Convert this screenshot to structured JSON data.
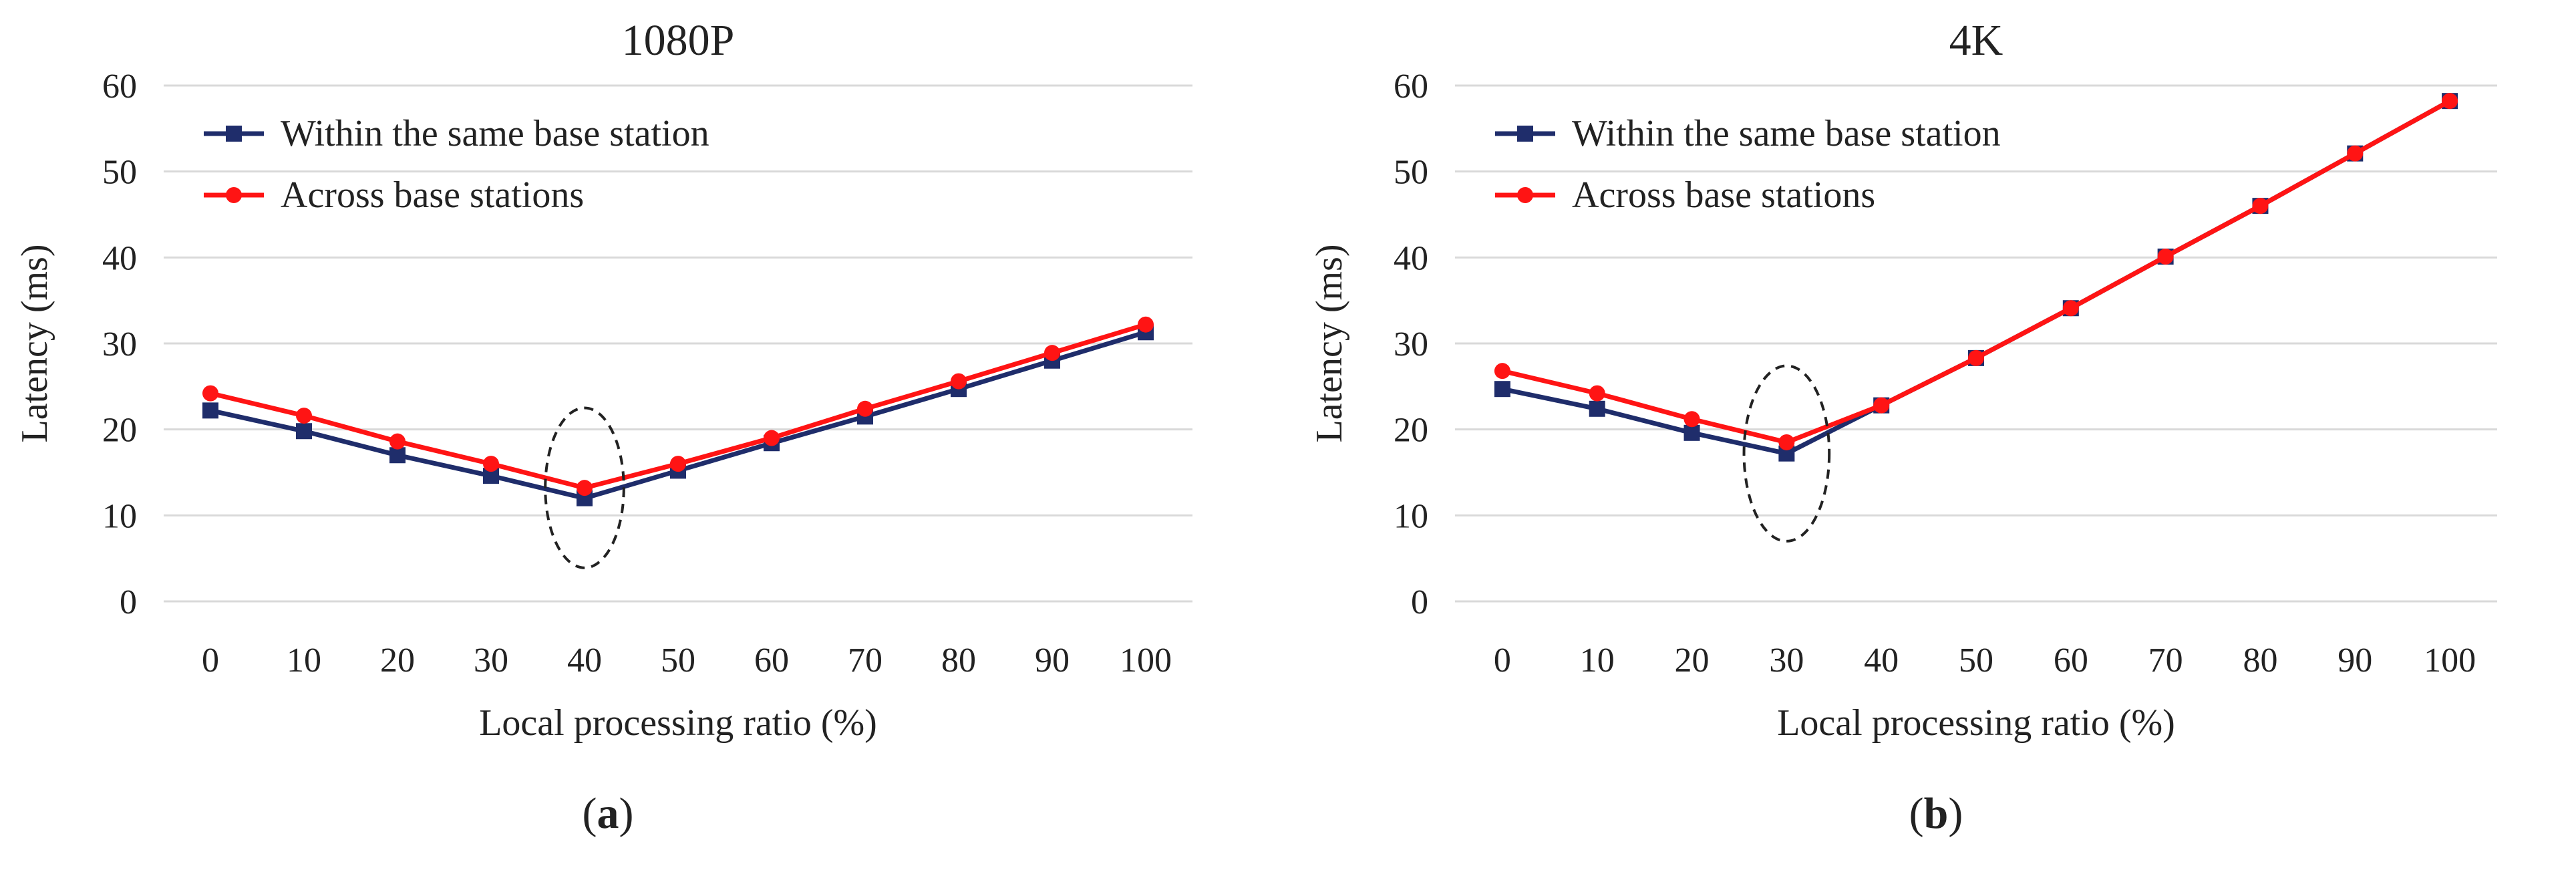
{
  "chart_data": [
    {
      "type": "line",
      "title": "1080P",
      "xlabel": "Local processing ratio (%)",
      "ylabel": "Latency (ms)",
      "x": [
        0,
        10,
        20,
        30,
        40,
        50,
        60,
        70,
        80,
        90,
        100
      ],
      "xtick_labels": [
        "0",
        "10",
        "20",
        "30",
        "40",
        "50",
        "60",
        "70",
        "80",
        "90",
        "100"
      ],
      "ylim": [
        0,
        60
      ],
      "yticks": [
        0,
        10,
        20,
        30,
        40,
        50,
        60
      ],
      "ytick_labels": [
        "0",
        "10",
        "20",
        "30",
        "40",
        "50",
        "60"
      ],
      "grid": "horizontal",
      "legend_position": "top-left",
      "series": [
        {
          "name": "Within the same base station",
          "color": "#1f2d6b",
          "marker": "square",
          "values": [
            22.2,
            19.8,
            17.0,
            14.6,
            12.0,
            15.2,
            18.4,
            21.5,
            24.7,
            28.0,
            31.3
          ]
        },
        {
          "name": "Across base stations",
          "color": "#ff1414",
          "marker": "circle",
          "values": [
            24.2,
            21.6,
            18.6,
            16.0,
            13.2,
            16.0,
            19.0,
            22.4,
            25.6,
            28.9,
            32.2
          ]
        }
      ],
      "annotation": {
        "type": "dashed-ellipse",
        "center": [
          40,
          13.2
        ],
        "radius": [
          4.2,
          9.3
        ]
      },
      "panel_label": {
        "prefix": "(",
        "letter": "a",
        "suffix": ")"
      }
    },
    {
      "type": "line",
      "title": "4K",
      "xlabel": "Local processing ratio (%)",
      "ylabel": "Latency (ms)",
      "x": [
        0,
        10,
        20,
        30,
        40,
        50,
        60,
        70,
        80,
        90,
        100
      ],
      "xtick_labels": [
        "0",
        "10",
        "20",
        "30",
        "40",
        "50",
        "60",
        "70",
        "80",
        "90",
        "100"
      ],
      "ylim": [
        0,
        60
      ],
      "yticks": [
        0,
        10,
        20,
        30,
        40,
        50,
        60
      ],
      "ytick_labels": [
        "0",
        "10",
        "20",
        "30",
        "40",
        "50",
        "60"
      ],
      "grid": "horizontal",
      "legend_position": "top-left",
      "series": [
        {
          "name": "Within the same base station",
          "color": "#1f2d6b",
          "marker": "square",
          "values": [
            24.7,
            22.4,
            19.6,
            17.2,
            22.8,
            28.3,
            34.1,
            40.1,
            46.0,
            52.1,
            58.2
          ]
        },
        {
          "name": "Across base stations",
          "color": "#ff1414",
          "marker": "circle",
          "values": [
            26.8,
            24.2,
            21.2,
            18.5,
            22.8,
            28.3,
            34.1,
            40.1,
            46.0,
            52.1,
            58.2
          ]
        }
      ],
      "annotation": {
        "type": "dashed-ellipse",
        "center": [
          30,
          17.2
        ],
        "radius": [
          4.5,
          10.2
        ]
      },
      "panel_label": {
        "prefix": "(",
        "letter": "b",
        "suffix": ")"
      }
    }
  ]
}
